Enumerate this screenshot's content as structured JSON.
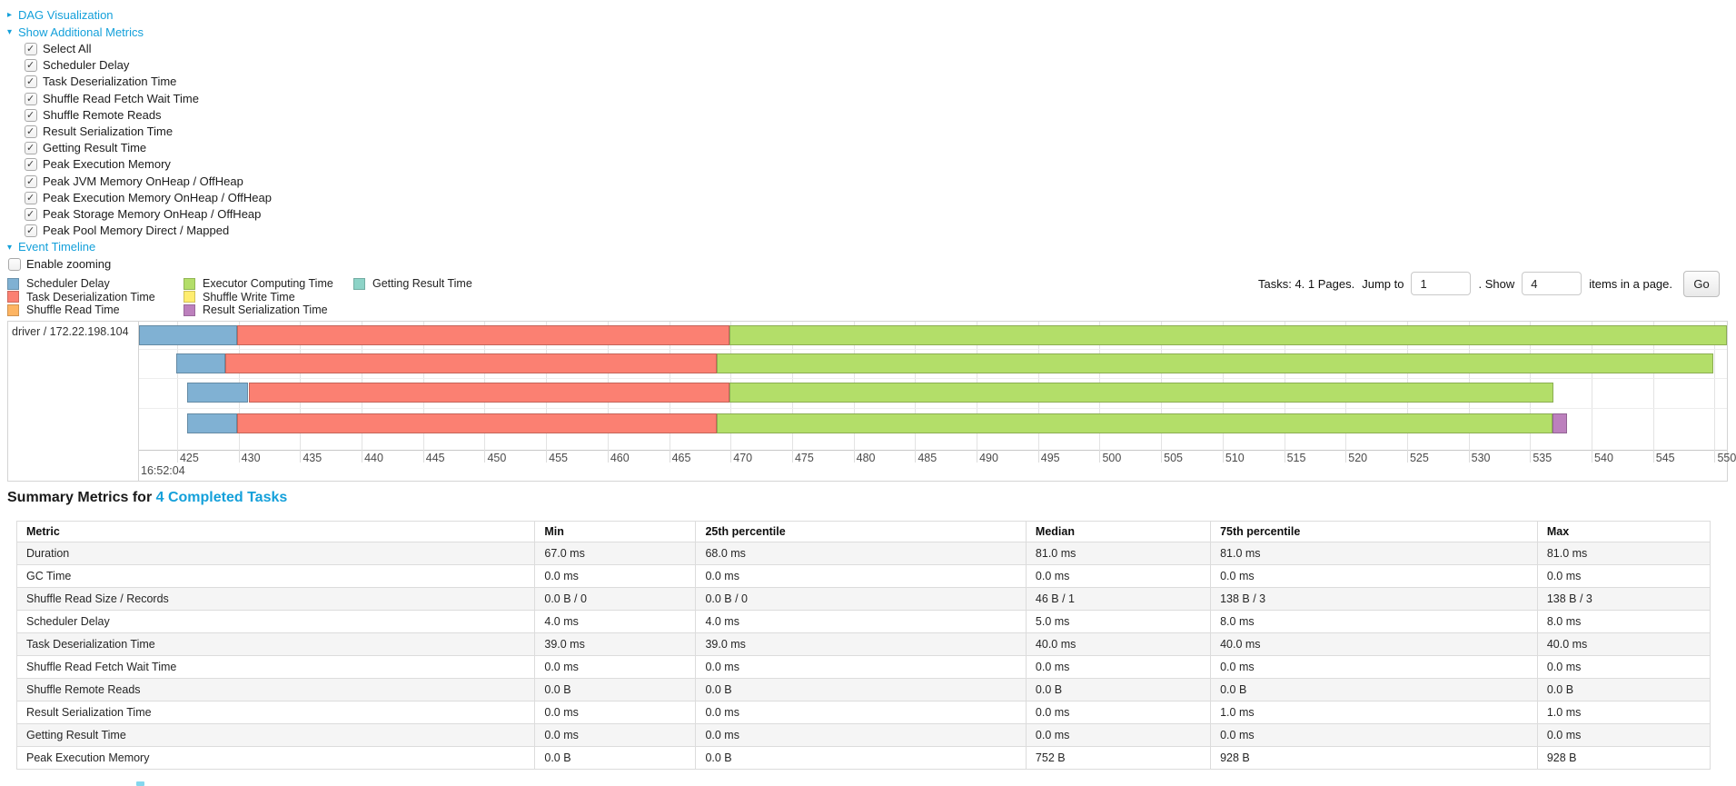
{
  "colors": {
    "link": "#14A0DA",
    "scheduler_delay": "#80B1D3",
    "task_deserialization": "#FB8072",
    "shuffle_read": "#FDB462",
    "executor_computing": "#B3DE69",
    "shuffle_write": "#FFED6F",
    "result_serialization": "#BC80BD",
    "getting_result": "#8DD3C7"
  },
  "sections": {
    "dag": {
      "label": "DAG Visualization",
      "expanded": false
    },
    "metrics": {
      "label": "Show Additional Metrics",
      "expanded": true
    },
    "timeline": {
      "label": "Event Timeline",
      "expanded": true
    }
  },
  "metric_checkboxes": [
    {
      "label": "Select All",
      "checked": true
    },
    {
      "label": "Scheduler Delay",
      "checked": true
    },
    {
      "label": "Task Deserialization Time",
      "checked": true
    },
    {
      "label": "Shuffle Read Fetch Wait Time",
      "checked": true
    },
    {
      "label": "Shuffle Remote Reads",
      "checked": true
    },
    {
      "label": "Result Serialization Time",
      "checked": true
    },
    {
      "label": "Getting Result Time",
      "checked": true
    },
    {
      "label": "Peak Execution Memory",
      "checked": true
    },
    {
      "label": "Peak JVM Memory OnHeap / OffHeap",
      "checked": true
    },
    {
      "label": "Peak Execution Memory OnHeap / OffHeap",
      "checked": true
    },
    {
      "label": "Peak Storage Memory OnHeap / OffHeap",
      "checked": true
    },
    {
      "label": "Peak Pool Memory Direct / Mapped",
      "checked": true
    }
  ],
  "enable_zooming": {
    "label": "Enable zooming",
    "checked": false
  },
  "pagination": {
    "tasks_pages": "Tasks: 4. 1 Pages.",
    "jump_label": "Jump to",
    "jump_value": "1",
    "show_label": ". Show",
    "show_value": "4",
    "suffix_label": "items in a page.",
    "go_label": "Go"
  },
  "chart_data": {
    "type": "timeline",
    "title": "Event Timeline",
    "group_label": "driver / 172.22.198.104",
    "x_major_label": "16:52:04",
    "x_unit": "milliseconds within 16:52:04",
    "x_domain": [
      421.9,
      551.0
    ],
    "x_ticks": [
      425,
      430,
      435,
      440,
      445,
      450,
      455,
      460,
      465,
      470,
      475,
      480,
      485,
      490,
      495,
      500,
      505,
      510,
      515,
      520,
      525,
      530,
      535,
      540,
      545,
      550
    ],
    "legend": [
      {
        "key": "scheduler_delay",
        "label": "Scheduler Delay"
      },
      {
        "key": "task_deserialization",
        "label": "Task Deserialization Time"
      },
      {
        "key": "shuffle_read",
        "label": "Shuffle Read Time"
      },
      {
        "key": "executor_computing",
        "label": "Executor Computing Time"
      },
      {
        "key": "shuffle_write",
        "label": "Shuffle Write Time"
      },
      {
        "key": "result_serialization",
        "label": "Result Serialization Time"
      },
      {
        "key": "getting_result",
        "label": "Getting Result Time"
      }
    ],
    "tasks": [
      {
        "segments": [
          [
            "scheduler_delay",
            421.9,
            429.9
          ],
          [
            "task_deserialization",
            429.9,
            469.9
          ],
          [
            "executor_computing",
            469.9,
            551.0
          ]
        ]
      },
      {
        "segments": [
          [
            "scheduler_delay",
            424.9,
            428.9
          ],
          [
            "task_deserialization",
            428.9,
            468.9
          ],
          [
            "executor_computing",
            468.9,
            549.9
          ]
        ]
      },
      {
        "segments": [
          [
            "scheduler_delay",
            425.8,
            430.8
          ],
          [
            "task_deserialization",
            430.8,
            469.9
          ],
          [
            "executor_computing",
            469.9,
            536.9
          ]
        ]
      },
      {
        "segments": [
          [
            "scheduler_delay",
            425.8,
            429.9
          ],
          [
            "task_deserialization",
            429.9,
            468.9
          ],
          [
            "executor_computing",
            468.9,
            536.8
          ],
          [
            "result_serialization",
            536.8,
            538.0
          ]
        ]
      }
    ]
  },
  "summary": {
    "heading": "Summary Metrics for",
    "heading_link": "4 Completed Tasks",
    "columns": [
      "Metric",
      "Min",
      "25th percentile",
      "Median",
      "75th percentile",
      "Max"
    ],
    "rows": [
      [
        "Duration",
        "67.0 ms",
        "68.0 ms",
        "81.0 ms",
        "81.0 ms",
        "81.0 ms"
      ],
      [
        "GC Time",
        "0.0 ms",
        "0.0 ms",
        "0.0 ms",
        "0.0 ms",
        "0.0 ms"
      ],
      [
        "Shuffle Read Size / Records",
        "0.0 B / 0",
        "0.0 B / 0",
        "46 B / 1",
        "138 B / 3",
        "138 B / 3"
      ],
      [
        "Scheduler Delay",
        "4.0 ms",
        "4.0 ms",
        "5.0 ms",
        "8.0 ms",
        "8.0 ms"
      ],
      [
        "Task Deserialization Time",
        "39.0 ms",
        "39.0 ms",
        "40.0 ms",
        "40.0 ms",
        "40.0 ms"
      ],
      [
        "Shuffle Read Fetch Wait Time",
        "0.0 ms",
        "0.0 ms",
        "0.0 ms",
        "0.0 ms",
        "0.0 ms"
      ],
      [
        "Shuffle Remote Reads",
        "0.0 B",
        "0.0 B",
        "0.0 B",
        "0.0 B",
        "0.0 B"
      ],
      [
        "Result Serialization Time",
        "0.0 ms",
        "0.0 ms",
        "0.0 ms",
        "1.0 ms",
        "1.0 ms"
      ],
      [
        "Getting Result Time",
        "0.0 ms",
        "0.0 ms",
        "0.0 ms",
        "0.0 ms",
        "0.0 ms"
      ],
      [
        "Peak Execution Memory",
        "0.0 B",
        "0.0 B",
        "752 B",
        "928 B",
        "928 B"
      ]
    ]
  }
}
